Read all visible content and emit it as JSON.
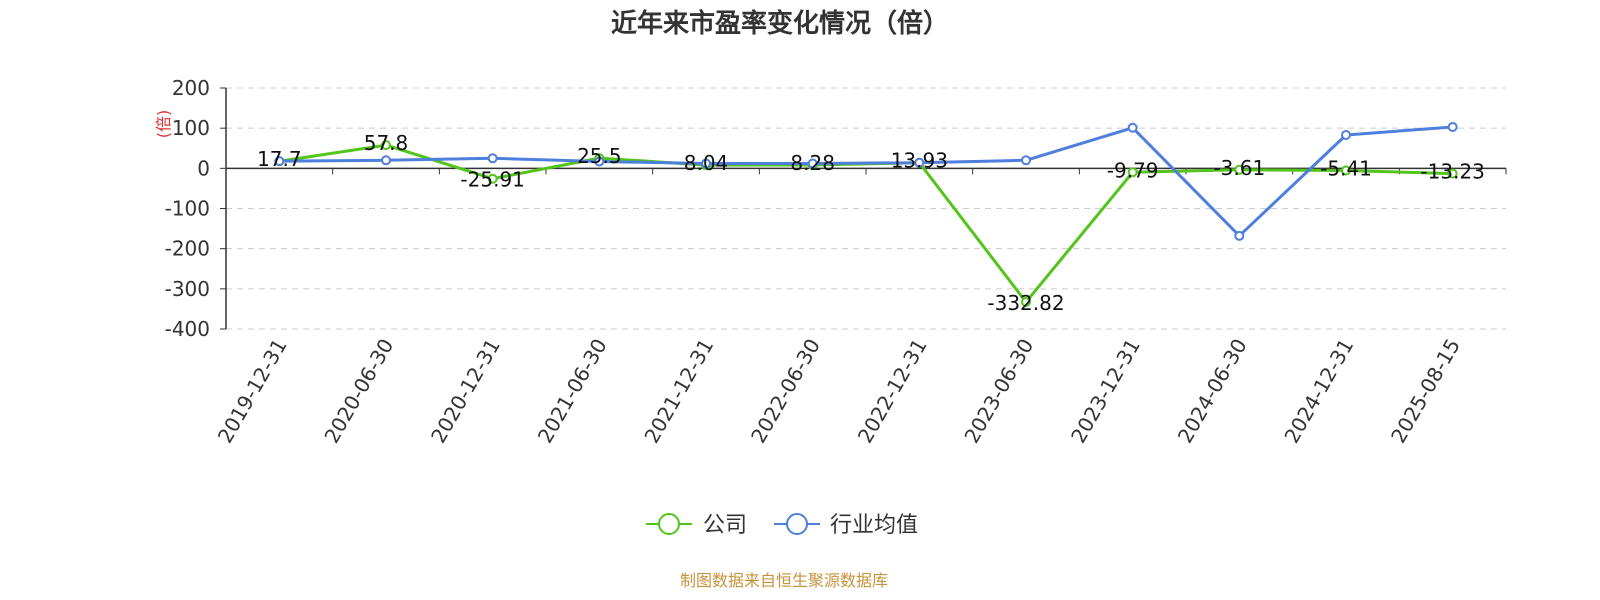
{
  "chart_data": {
    "type": "line",
    "title": "近年来市盈率变化情况（倍）",
    "ylabel": "(倍)",
    "ylim": [
      -400,
      200
    ],
    "yticks": [
      200,
      100,
      0,
      -100,
      -200,
      -300,
      -400
    ],
    "grid": true,
    "legend_position": "bottom-center",
    "categories": [
      "2019-12-31",
      "2020-06-30",
      "2020-12-31",
      "2021-06-30",
      "2021-12-31",
      "2022-06-30",
      "2022-12-31",
      "2023-06-30",
      "2023-12-31",
      "2024-06-30",
      "2024-12-31",
      "2025-08-15"
    ],
    "series": [
      {
        "name": "公司",
        "color": "#52c41a",
        "values": [
          17.7,
          57.8,
          -25.91,
          25.5,
          8.04,
          8.28,
          13.93,
          -332.82,
          -9.79,
          -3.61,
          -5.41,
          -13.23
        ],
        "labels": [
          "17.7",
          "57.8",
          "-25.91",
          "25.5",
          "8.04",
          "8.28",
          "13.93",
          "-332.82",
          "-9.79",
          "-3.61",
          "-5.41",
          "-13.23"
        ]
      },
      {
        "name": "行业均值",
        "color": "#4f7fdc",
        "values": [
          18,
          20,
          25,
          17,
          12,
          12,
          14,
          20,
          101,
          -168,
          83,
          103
        ]
      }
    ]
  },
  "footer": {
    "source": "制图数据来自恒生聚源数据库",
    "source_color": "#c8923c"
  },
  "colors": {
    "axis": "#333333",
    "grid": "#cccccc",
    "unit": "#e03030"
  }
}
